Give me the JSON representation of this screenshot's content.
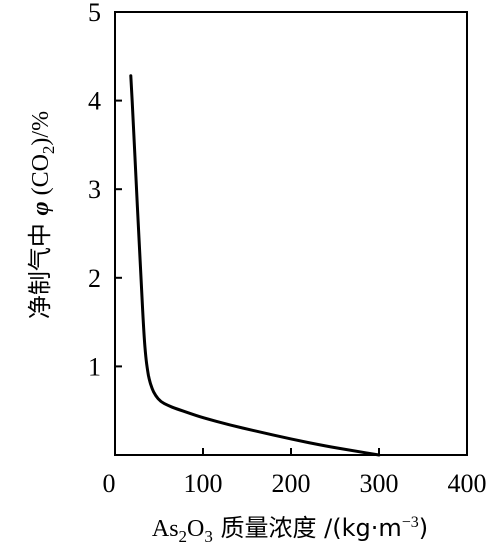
{
  "chart_data": {
    "type": "line",
    "xlabel": {
      "prefix": "As",
      "sub1": "2",
      "mid": "O",
      "sub2": "3",
      "text": " 质量浓度 /(kg·m",
      "sup": "−3",
      "suffix": ")"
    },
    "ylabel": {
      "text": "净制气中 ",
      "phi": "φ",
      "co": " (CO",
      "sub": "2",
      "suffix": ")/%"
    },
    "xlim": [
      0,
      400
    ],
    "ylim": [
      0,
      5
    ],
    "xticks": [
      0,
      100,
      200,
      300,
      400
    ],
    "yticks": [
      1,
      2,
      3,
      4,
      5
    ],
    "grid": false,
    "series": [
      {
        "x": [
          18,
          21,
          24,
          27,
          30,
          33,
          35,
          37,
          39,
          42,
          46,
          52,
          60,
          70,
          85,
          100,
          130,
          160,
          200,
          240,
          270,
          300
        ],
        "y": [
          4.28,
          3.7,
          3.1,
          2.5,
          1.9,
          1.35,
          1.1,
          0.95,
          0.85,
          0.75,
          0.67,
          0.6,
          0.56,
          0.52,
          0.47,
          0.42,
          0.34,
          0.27,
          0.18,
          0.1,
          0.05,
          0.0
        ]
      }
    ]
  }
}
